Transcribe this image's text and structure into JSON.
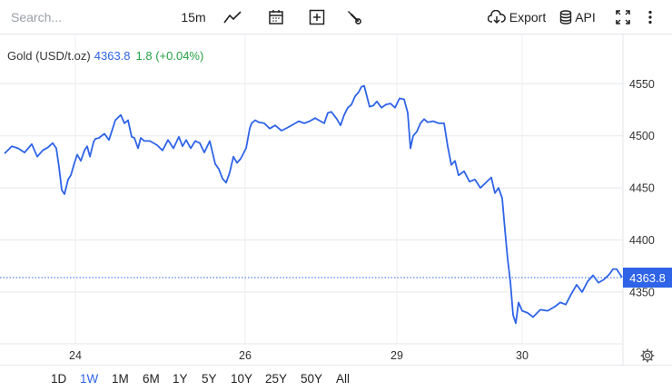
{
  "toolbar": {
    "search_placeholder": "Search...",
    "interval": "15m",
    "export_label": "Export",
    "api_label": "API"
  },
  "header": {
    "title": "Gold (USD/t.oz)",
    "price": "4363.8",
    "change": "1.8 (+0.04%)"
  },
  "price_tag": "4363.8",
  "ranges": [
    "1D",
    "1W",
    "1M",
    "6M",
    "1Y",
    "5Y",
    "10Y",
    "25Y",
    "50Y",
    "All"
  ],
  "active_range": "1W",
  "colors": {
    "line": "#2f64e8",
    "change_positive": "#26a145"
  },
  "chart_data": {
    "type": "line",
    "title": "Gold (USD/t.oz)",
    "x_tick_labels": [
      "24",
      "26",
      "29",
      "30"
    ],
    "y_tick_labels": [
      "4350",
      "4400",
      "4450",
      "4500",
      "4550"
    ],
    "ylim": [
      4300,
      4570
    ],
    "last_value": 4363.8,
    "series": [
      {
        "name": "Gold (USD/t.oz)",
        "x": [
          0,
          8,
          15,
          22,
          30,
          36,
          42,
          48,
          53,
          57,
          60,
          63,
          66,
          70,
          73,
          77,
          80,
          84,
          88,
          91,
          94,
          98,
          100,
          104,
          110,
          115,
          122,
          128,
          132,
          136,
          140,
          143,
          147,
          150,
          154,
          160,
          168,
          174,
          180,
          186,
          192,
          196,
          200,
          205,
          210,
          215,
          220,
          226,
          232,
          236,
          240,
          244,
          248,
          252,
          256,
          260,
          266,
          270,
          272,
          276,
          280,
          286,
          292,
          298,
          305,
          312,
          318,
          324,
          330,
          336,
          342,
          348,
          352,
          356,
          360,
          366,
          370,
          374,
          378,
          382,
          386,
          390,
          393,
          396,
          399,
          402,
          406,
          410,
          415,
          420,
          425,
          430,
          435,
          440,
          444,
          447,
          450,
          454,
          458,
          462,
          466,
          472,
          478,
          484,
          488,
          492,
          496,
          500,
          506,
          512,
          518,
          524,
          530,
          536,
          540,
          544,
          548,
          551,
          554,
          557,
          560,
          563,
          566,
          570,
          576,
          582,
          590,
          598,
          606,
          612,
          618,
          624,
          630,
          636,
          642,
          648,
          654,
          660,
          666,
          670,
          674,
          680
        ],
        "values": [
          4483,
          4490,
          4488,
          4484,
          4492,
          4480,
          4486,
          4489,
          4493,
          4488,
          4470,
          4448,
          4444,
          4458,
          4462,
          4474,
          4482,
          4476,
          4486,
          4490,
          4480,
          4494,
          4497,
          4498,
          4502,
          4496,
          4515,
          4520,
          4512,
          4515,
          4499,
          4498,
          4488,
          4498,
          4495,
          4495,
          4491,
          4486,
          4496,
          4488,
          4499,
          4490,
          4496,
          4488,
          4495,
          4493,
          4484,
          4495,
          4473,
          4468,
          4459,
          4455,
          4465,
          4480,
          4474,
          4478,
          4488,
          4507,
          4512,
          4515,
          4513,
          4512,
          4507,
          4510,
          4505,
          4508,
          4511,
          4514,
          4512,
          4514,
          4517,
          4514,
          4512,
          4522,
          4523,
          4516,
          4510,
          4520,
          4527,
          4530,
          4538,
          4542,
          4547,
          4548,
          4538,
          4528,
          4529,
          4533,
          4527,
          4530,
          4531,
          4527,
          4536,
          4535,
          4522,
          4488,
          4500,
          4504,
          4512,
          4516,
          4513,
          4514,
          4512,
          4512,
          4490,
          4472,
          4476,
          4462,
          4466,
          4456,
          4458,
          4450,
          4455,
          4460,
          4445,
          4450,
          4440,
          4410,
          4382,
          4360,
          4328,
          4320,
          4340,
          4332,
          4330,
          4326,
          4333,
          4332,
          4336,
          4340,
          4338,
          4348,
          4357,
          4350,
          4360,
          4366,
          4359,
          4362,
          4367,
          4372,
          4372,
          4364
        ]
      }
    ],
    "grid": true,
    "legend": "none"
  }
}
